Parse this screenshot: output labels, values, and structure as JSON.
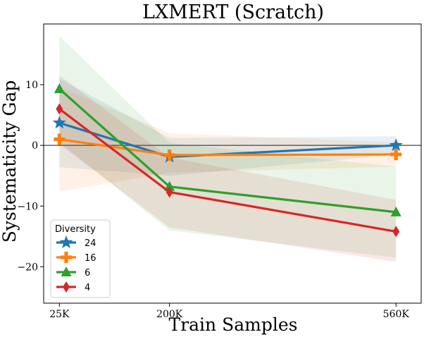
{
  "chart_data": {
    "type": "line",
    "title": "LXMERT (Scratch)",
    "xlabel": "Train Samples",
    "ylabel": "Systematicity Gap",
    "categories": [
      "25K",
      "200K",
      "560K"
    ],
    "x": [
      25,
      200,
      560
    ],
    "ylim": [
      -26,
      20
    ],
    "yticks": [
      10,
      0,
      -10,
      -20
    ],
    "ytick_labels": [
      "10",
      "0",
      "−10",
      "−20"
    ],
    "zero_line": true,
    "legend": {
      "title": "Diversity",
      "placement": "lower-left"
    },
    "series": [
      {
        "name": "24",
        "color": "#1f77b4",
        "marker": "star",
        "values": [
          3.7,
          -1.9,
          0.0
        ],
        "lower": [
          -3.6,
          -5.0,
          -1.5
        ],
        "upper": [
          11.0,
          1.2,
          1.5
        ]
      },
      {
        "name": "16",
        "color": "#ff7f0e",
        "marker": "plus",
        "values": [
          1.0,
          -1.6,
          -1.5
        ],
        "lower": [
          -7.6,
          -4.5,
          -3.5
        ],
        "upper": [
          9.6,
          2.0,
          0.5
        ]
      },
      {
        "name": "6",
        "color": "#2ca02c",
        "marker": "triangle",
        "values": [
          9.3,
          -6.8,
          -11.0
        ],
        "lower": [
          0.5,
          -14.0,
          -18.5
        ],
        "upper": [
          18.0,
          0.4,
          -3.5
        ]
      },
      {
        "name": "4",
        "color": "#d62728",
        "marker": "diamond",
        "values": [
          6.0,
          -7.7,
          -14.2
        ],
        "lower": [
          0.2,
          -13.5,
          -19.2
        ],
        "upper": [
          11.5,
          -2.0,
          -9.0
        ]
      }
    ]
  }
}
